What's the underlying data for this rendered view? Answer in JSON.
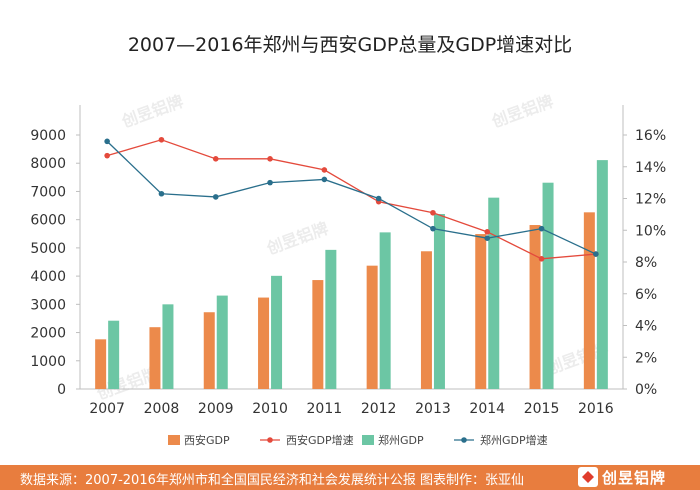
{
  "title": "2007—2016年郑州与西安GDP总量及GDP增速对比",
  "footer": {
    "source": "数据来源：2007-2016年郑州市和全国国民经济和社会发展统计公报  图表制作：张亚仙",
    "brand": "创昱铝牌",
    "brand_color": "#e03c2c"
  },
  "watermark": "创昱铝牌",
  "chart_data": {
    "type": "bar",
    "categories": [
      "2007",
      "2008",
      "2009",
      "2010",
      "2011",
      "2012",
      "2013",
      "2014",
      "2015",
      "2016"
    ],
    "y_left_ticks": [
      "0",
      "1000",
      "2000",
      "3000",
      "4000",
      "5000",
      "6000",
      "7000",
      "8000",
      "9000"
    ],
    "y_right_ticks": [
      "0%",
      "2%",
      "4%",
      "6%",
      "8%",
      "10%",
      "12%",
      "14%",
      "16%"
    ],
    "ylim_left": [
      0,
      9000
    ],
    "ylim_right": [
      0,
      16
    ],
    "grid": false,
    "legend_position": "bottom",
    "series": [
      {
        "name": "西安GDP",
        "kind": "bar",
        "axis": "left",
        "color": "#ec8a4b",
        "values": [
          1760,
          2190,
          2720,
          3240,
          3860,
          4370,
          4880,
          5490,
          5810,
          6260
        ]
      },
      {
        "name": "西安GDP增速",
        "kind": "line",
        "axis": "right",
        "color": "#e44a3c",
        "values": [
          14.7,
          15.7,
          14.5,
          14.5,
          13.8,
          11.8,
          11.1,
          9.9,
          8.2,
          8.5
        ]
      },
      {
        "name": "郑州GDP",
        "kind": "bar",
        "axis": "left",
        "color": "#6cc6a4",
        "values": [
          2420,
          3000,
          3310,
          4010,
          4930,
          5550,
          6200,
          6780,
          7310,
          8110
        ]
      },
      {
        "name": "郑州GDP增速",
        "kind": "line",
        "axis": "right",
        "color": "#2a6f8c",
        "values": [
          15.6,
          12.3,
          12.1,
          13.0,
          13.2,
          12.0,
          10.1,
          9.5,
          10.1,
          8.5
        ]
      }
    ]
  }
}
